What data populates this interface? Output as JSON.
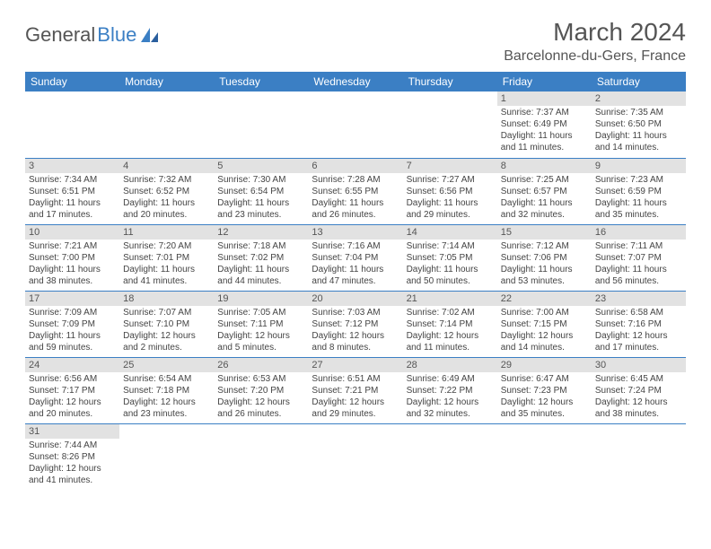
{
  "brand": {
    "part1": "General",
    "part2": "Blue"
  },
  "title": "March 2024",
  "location": "Barcelonne-du-Gers, France",
  "colors": {
    "header_bg": "#3b7fc4",
    "header_text": "#ffffff",
    "daynum_bg": "#e2e2e2",
    "border": "#3b7fc4",
    "text": "#444444",
    "title_text": "#555555"
  },
  "weekdays": [
    "Sunday",
    "Monday",
    "Tuesday",
    "Wednesday",
    "Thursday",
    "Friday",
    "Saturday"
  ],
  "weeks": [
    [
      null,
      null,
      null,
      null,
      null,
      {
        "n": "1",
        "sr": "Sunrise: 7:37 AM",
        "ss": "Sunset: 6:49 PM",
        "d1": "Daylight: 11 hours",
        "d2": "and 11 minutes."
      },
      {
        "n": "2",
        "sr": "Sunrise: 7:35 AM",
        "ss": "Sunset: 6:50 PM",
        "d1": "Daylight: 11 hours",
        "d2": "and 14 minutes."
      }
    ],
    [
      {
        "n": "3",
        "sr": "Sunrise: 7:34 AM",
        "ss": "Sunset: 6:51 PM",
        "d1": "Daylight: 11 hours",
        "d2": "and 17 minutes."
      },
      {
        "n": "4",
        "sr": "Sunrise: 7:32 AM",
        "ss": "Sunset: 6:52 PM",
        "d1": "Daylight: 11 hours",
        "d2": "and 20 minutes."
      },
      {
        "n": "5",
        "sr": "Sunrise: 7:30 AM",
        "ss": "Sunset: 6:54 PM",
        "d1": "Daylight: 11 hours",
        "d2": "and 23 minutes."
      },
      {
        "n": "6",
        "sr": "Sunrise: 7:28 AM",
        "ss": "Sunset: 6:55 PM",
        "d1": "Daylight: 11 hours",
        "d2": "and 26 minutes."
      },
      {
        "n": "7",
        "sr": "Sunrise: 7:27 AM",
        "ss": "Sunset: 6:56 PM",
        "d1": "Daylight: 11 hours",
        "d2": "and 29 minutes."
      },
      {
        "n": "8",
        "sr": "Sunrise: 7:25 AM",
        "ss": "Sunset: 6:57 PM",
        "d1": "Daylight: 11 hours",
        "d2": "and 32 minutes."
      },
      {
        "n": "9",
        "sr": "Sunrise: 7:23 AM",
        "ss": "Sunset: 6:59 PM",
        "d1": "Daylight: 11 hours",
        "d2": "and 35 minutes."
      }
    ],
    [
      {
        "n": "10",
        "sr": "Sunrise: 7:21 AM",
        "ss": "Sunset: 7:00 PM",
        "d1": "Daylight: 11 hours",
        "d2": "and 38 minutes."
      },
      {
        "n": "11",
        "sr": "Sunrise: 7:20 AM",
        "ss": "Sunset: 7:01 PM",
        "d1": "Daylight: 11 hours",
        "d2": "and 41 minutes."
      },
      {
        "n": "12",
        "sr": "Sunrise: 7:18 AM",
        "ss": "Sunset: 7:02 PM",
        "d1": "Daylight: 11 hours",
        "d2": "and 44 minutes."
      },
      {
        "n": "13",
        "sr": "Sunrise: 7:16 AM",
        "ss": "Sunset: 7:04 PM",
        "d1": "Daylight: 11 hours",
        "d2": "and 47 minutes."
      },
      {
        "n": "14",
        "sr": "Sunrise: 7:14 AM",
        "ss": "Sunset: 7:05 PM",
        "d1": "Daylight: 11 hours",
        "d2": "and 50 minutes."
      },
      {
        "n": "15",
        "sr": "Sunrise: 7:12 AM",
        "ss": "Sunset: 7:06 PM",
        "d1": "Daylight: 11 hours",
        "d2": "and 53 minutes."
      },
      {
        "n": "16",
        "sr": "Sunrise: 7:11 AM",
        "ss": "Sunset: 7:07 PM",
        "d1": "Daylight: 11 hours",
        "d2": "and 56 minutes."
      }
    ],
    [
      {
        "n": "17",
        "sr": "Sunrise: 7:09 AM",
        "ss": "Sunset: 7:09 PM",
        "d1": "Daylight: 11 hours",
        "d2": "and 59 minutes."
      },
      {
        "n": "18",
        "sr": "Sunrise: 7:07 AM",
        "ss": "Sunset: 7:10 PM",
        "d1": "Daylight: 12 hours",
        "d2": "and 2 minutes."
      },
      {
        "n": "19",
        "sr": "Sunrise: 7:05 AM",
        "ss": "Sunset: 7:11 PM",
        "d1": "Daylight: 12 hours",
        "d2": "and 5 minutes."
      },
      {
        "n": "20",
        "sr": "Sunrise: 7:03 AM",
        "ss": "Sunset: 7:12 PM",
        "d1": "Daylight: 12 hours",
        "d2": "and 8 minutes."
      },
      {
        "n": "21",
        "sr": "Sunrise: 7:02 AM",
        "ss": "Sunset: 7:14 PM",
        "d1": "Daylight: 12 hours",
        "d2": "and 11 minutes."
      },
      {
        "n": "22",
        "sr": "Sunrise: 7:00 AM",
        "ss": "Sunset: 7:15 PM",
        "d1": "Daylight: 12 hours",
        "d2": "and 14 minutes."
      },
      {
        "n": "23",
        "sr": "Sunrise: 6:58 AM",
        "ss": "Sunset: 7:16 PM",
        "d1": "Daylight: 12 hours",
        "d2": "and 17 minutes."
      }
    ],
    [
      {
        "n": "24",
        "sr": "Sunrise: 6:56 AM",
        "ss": "Sunset: 7:17 PM",
        "d1": "Daylight: 12 hours",
        "d2": "and 20 minutes."
      },
      {
        "n": "25",
        "sr": "Sunrise: 6:54 AM",
        "ss": "Sunset: 7:18 PM",
        "d1": "Daylight: 12 hours",
        "d2": "and 23 minutes."
      },
      {
        "n": "26",
        "sr": "Sunrise: 6:53 AM",
        "ss": "Sunset: 7:20 PM",
        "d1": "Daylight: 12 hours",
        "d2": "and 26 minutes."
      },
      {
        "n": "27",
        "sr": "Sunrise: 6:51 AM",
        "ss": "Sunset: 7:21 PM",
        "d1": "Daylight: 12 hours",
        "d2": "and 29 minutes."
      },
      {
        "n": "28",
        "sr": "Sunrise: 6:49 AM",
        "ss": "Sunset: 7:22 PM",
        "d1": "Daylight: 12 hours",
        "d2": "and 32 minutes."
      },
      {
        "n": "29",
        "sr": "Sunrise: 6:47 AM",
        "ss": "Sunset: 7:23 PM",
        "d1": "Daylight: 12 hours",
        "d2": "and 35 minutes."
      },
      {
        "n": "30",
        "sr": "Sunrise: 6:45 AM",
        "ss": "Sunset: 7:24 PM",
        "d1": "Daylight: 12 hours",
        "d2": "and 38 minutes."
      }
    ],
    [
      {
        "n": "31",
        "sr": "Sunrise: 7:44 AM",
        "ss": "Sunset: 8:26 PM",
        "d1": "Daylight: 12 hours",
        "d2": "and 41 minutes."
      },
      null,
      null,
      null,
      null,
      null,
      null
    ]
  ]
}
